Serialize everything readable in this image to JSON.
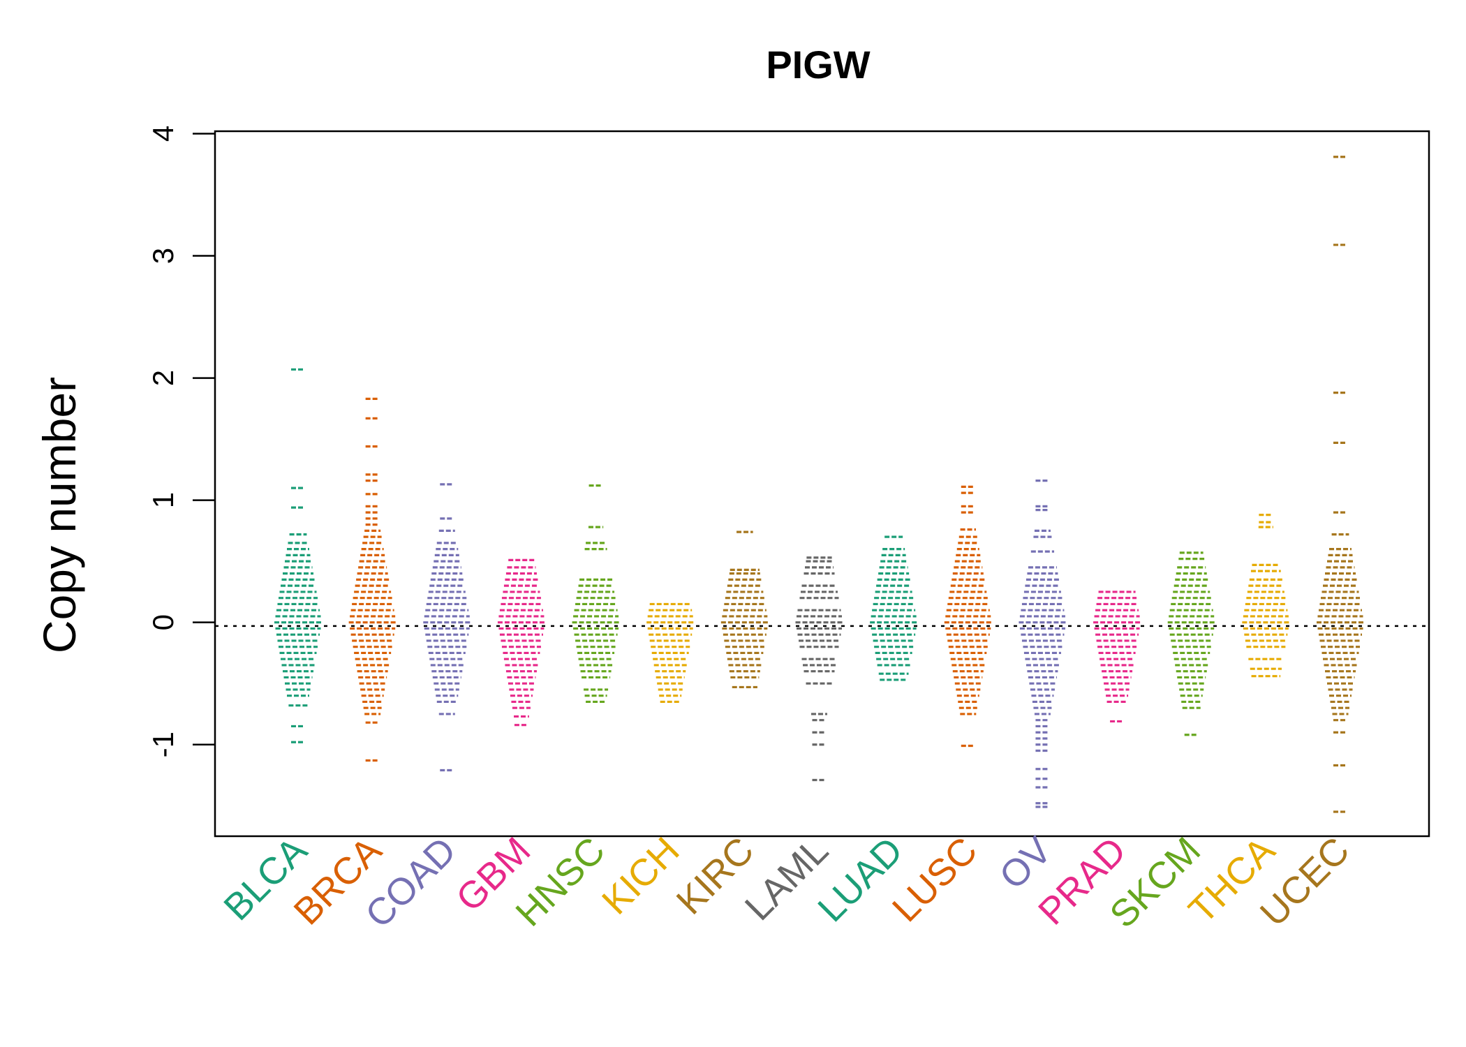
{
  "chart_data": {
    "type": "scatter",
    "title": "PIGW",
    "xlabel": "",
    "ylabel": "Copy number",
    "ylim": [
      -1.75,
      4.02
    ],
    "yticks": [
      "-1",
      "0",
      "1",
      "2",
      "3",
      "4"
    ],
    "grid": false,
    "legend": "none",
    "reference_line": 0,
    "categories": [
      {
        "name": "BLCA",
        "color": "#1B9E77",
        "points": [
          2.07,
          1.1,
          0.94,
          0.72,
          0.65,
          0.6,
          0.55,
          0.5,
          0.45,
          0.4,
          0.35,
          0.3,
          0.25,
          0.2,
          0.15,
          0.1,
          0.05,
          0.0,
          -0.05,
          -0.1,
          -0.15,
          -0.2,
          -0.25,
          -0.3,
          -0.35,
          -0.4,
          -0.45,
          -0.5,
          -0.55,
          -0.6,
          -0.68,
          -0.85,
          -0.98
        ]
      },
      {
        "name": "BRCA",
        "color": "#D95F02",
        "points": [
          1.83,
          1.67,
          1.44,
          1.21,
          1.16,
          1.05,
          0.95,
          0.9,
          0.85,
          0.8,
          0.75,
          0.7,
          0.65,
          0.6,
          0.55,
          0.5,
          0.45,
          0.4,
          0.35,
          0.3,
          0.25,
          0.2,
          0.15,
          0.1,
          0.05,
          0.0,
          -0.05,
          -0.1,
          -0.15,
          -0.2,
          -0.25,
          -0.3,
          -0.35,
          -0.4,
          -0.45,
          -0.5,
          -0.55,
          -0.6,
          -0.65,
          -0.7,
          -0.75,
          -0.82,
          -1.13
        ]
      },
      {
        "name": "COAD",
        "color": "#7570B3",
        "points": [
          1.13,
          0.85,
          0.75,
          0.65,
          0.6,
          0.55,
          0.5,
          0.45,
          0.4,
          0.35,
          0.3,
          0.25,
          0.2,
          0.15,
          0.1,
          0.05,
          0.0,
          -0.05,
          -0.1,
          -0.15,
          -0.2,
          -0.25,
          -0.3,
          -0.35,
          -0.4,
          -0.45,
          -0.5,
          -0.55,
          -0.6,
          -0.65,
          -0.75,
          -1.21
        ]
      },
      {
        "name": "GBM",
        "color": "#E7298A",
        "points": [
          0.51,
          0.45,
          0.4,
          0.35,
          0.3,
          0.25,
          0.2,
          0.15,
          0.1,
          0.05,
          0.0,
          -0.05,
          -0.1,
          -0.15,
          -0.2,
          -0.25,
          -0.3,
          -0.35,
          -0.4,
          -0.45,
          -0.5,
          -0.55,
          -0.6,
          -0.65,
          -0.7,
          -0.77,
          -0.84
        ]
      },
      {
        "name": "HNSC",
        "color": "#66A61E",
        "points": [
          1.12,
          0.78,
          0.65,
          0.6,
          0.35,
          0.3,
          0.25,
          0.2,
          0.15,
          0.1,
          0.05,
          0.0,
          -0.05,
          -0.1,
          -0.15,
          -0.2,
          -0.25,
          -0.3,
          -0.35,
          -0.4,
          -0.45,
          -0.55,
          -0.6,
          -0.65
        ]
      },
      {
        "name": "KICH",
        "color": "#E6AB02",
        "points": [
          0.15,
          0.1,
          0.05,
          0.0,
          -0.05,
          -0.1,
          -0.15,
          -0.2,
          -0.25,
          -0.3,
          -0.35,
          -0.4,
          -0.45,
          -0.5,
          -0.55,
          -0.6,
          -0.65
        ]
      },
      {
        "name": "KIRC",
        "color": "#A6761D",
        "points": [
          0.74,
          0.43,
          0.4,
          0.35,
          0.3,
          0.25,
          0.2,
          0.15,
          0.1,
          0.05,
          0.0,
          -0.05,
          -0.1,
          -0.15,
          -0.2,
          -0.25,
          -0.3,
          -0.35,
          -0.4,
          -0.45,
          -0.53
        ]
      },
      {
        "name": "LAML",
        "color": "#666666",
        "points": [
          0.53,
          0.5,
          0.45,
          0.4,
          0.3,
          0.25,
          0.2,
          0.1,
          0.05,
          0.0,
          -0.05,
          -0.1,
          -0.15,
          -0.2,
          -0.3,
          -0.35,
          -0.4,
          -0.5,
          -0.75,
          -0.8,
          -0.9,
          -1.0,
          -1.29
        ]
      },
      {
        "name": "LUAD",
        "color": "#1B9E77",
        "points": [
          0.7,
          0.6,
          0.55,
          0.5,
          0.45,
          0.4,
          0.35,
          0.3,
          0.25,
          0.2,
          0.15,
          0.1,
          0.05,
          0.0,
          -0.05,
          -0.1,
          -0.15,
          -0.2,
          -0.25,
          -0.3,
          -0.35,
          -0.42,
          -0.47
        ]
      },
      {
        "name": "LUSC",
        "color": "#D95F02",
        "points": [
          1.11,
          1.06,
          0.95,
          0.9,
          0.76,
          0.7,
          0.65,
          0.6,
          0.55,
          0.5,
          0.45,
          0.4,
          0.35,
          0.3,
          0.25,
          0.2,
          0.15,
          0.1,
          0.05,
          0.0,
          -0.05,
          -0.1,
          -0.15,
          -0.2,
          -0.25,
          -0.3,
          -0.35,
          -0.4,
          -0.45,
          -0.5,
          -0.55,
          -0.6,
          -0.65,
          -0.7,
          -0.75,
          -1.01
        ]
      },
      {
        "name": "OV",
        "color": "#7570B3",
        "points": [
          1.16,
          0.95,
          0.92,
          0.75,
          0.7,
          0.58,
          0.45,
          0.4,
          0.35,
          0.3,
          0.25,
          0.2,
          0.15,
          0.1,
          0.05,
          0.0,
          -0.05,
          -0.1,
          -0.15,
          -0.2,
          -0.25,
          -0.3,
          -0.35,
          -0.4,
          -0.45,
          -0.5,
          -0.55,
          -0.6,
          -0.65,
          -0.7,
          -0.75,
          -0.8,
          -0.85,
          -0.9,
          -0.95,
          -1.0,
          -1.05,
          -1.2,
          -1.28,
          -1.35,
          -1.48,
          -1.51
        ]
      },
      {
        "name": "PRAD",
        "color": "#E7298A",
        "points": [
          0.25,
          0.2,
          0.15,
          0.1,
          0.05,
          0.0,
          -0.05,
          -0.1,
          -0.15,
          -0.2,
          -0.25,
          -0.3,
          -0.35,
          -0.4,
          -0.45,
          -0.5,
          -0.55,
          -0.6,
          -0.65,
          -0.81
        ]
      },
      {
        "name": "SKCM",
        "color": "#66A61E",
        "points": [
          0.57,
          0.52,
          0.45,
          0.4,
          0.35,
          0.3,
          0.25,
          0.2,
          0.15,
          0.1,
          0.05,
          0.0,
          -0.05,
          -0.1,
          -0.15,
          -0.2,
          -0.25,
          -0.3,
          -0.35,
          -0.4,
          -0.45,
          -0.5,
          -0.55,
          -0.6,
          -0.65,
          -0.7,
          -0.92
        ]
      },
      {
        "name": "THCA",
        "color": "#E6AB02",
        "points": [
          0.88,
          0.82,
          0.78,
          0.47,
          0.42,
          0.35,
          0.3,
          0.25,
          0.2,
          0.15,
          0.1,
          0.05,
          0.0,
          -0.05,
          -0.1,
          -0.15,
          -0.2,
          -0.3,
          -0.38,
          -0.44
        ]
      },
      {
        "name": "UCEC",
        "color": "#A6761D",
        "points": [
          3.81,
          3.09,
          1.88,
          1.47,
          0.9,
          0.72,
          0.6,
          0.55,
          0.5,
          0.45,
          0.4,
          0.35,
          0.3,
          0.25,
          0.2,
          0.15,
          0.1,
          0.05,
          0.0,
          -0.05,
          -0.1,
          -0.15,
          -0.2,
          -0.25,
          -0.3,
          -0.35,
          -0.4,
          -0.45,
          -0.5,
          -0.55,
          -0.6,
          -0.65,
          -0.7,
          -0.75,
          -0.8,
          -0.9,
          -1.17,
          -1.55
        ]
      }
    ]
  }
}
